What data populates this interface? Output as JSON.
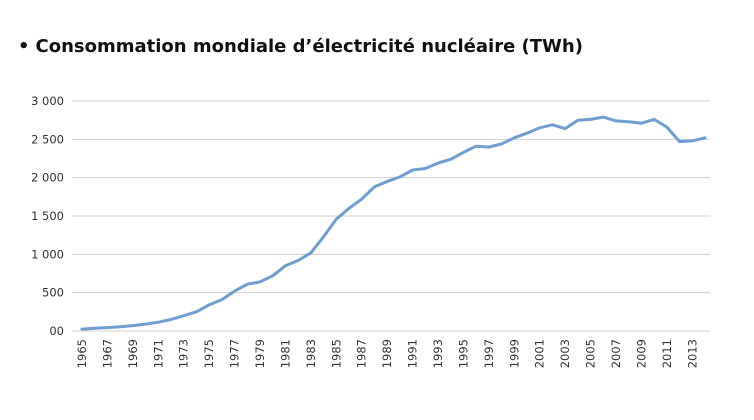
{
  "title_bullet": "•",
  "chart_data": {
    "type": "line",
    "title": "Consommation mondiale d’électricité nucléaire (TWh)",
    "xlabel": "",
    "ylabel": "",
    "ylim": [
      0,
      3000
    ],
    "y_ticks": [
      0,
      500,
      1000,
      1500,
      2000,
      2500,
      3000
    ],
    "y_tick_labels": [
      "00",
      "500",
      "1 000",
      "1 500",
      "2 000",
      "2 500",
      "3 000"
    ],
    "x_tick_labels": [
      "1965",
      "1967",
      "1969",
      "1971",
      "1973",
      "1975",
      "1977",
      "1979",
      "1981",
      "1983",
      "1985",
      "1987",
      "1989",
      "1991",
      "1993",
      "1995",
      "1997",
      "1999",
      "2001",
      "2003",
      "2005",
      "2007",
      "2009",
      "2011",
      "2013"
    ],
    "grid": "horizontal",
    "line_color": "#6f9fd0",
    "series": [
      {
        "x": [
          1965,
          1966,
          1967,
          1968,
          1969,
          1970,
          1971,
          1972,
          1973,
          1974,
          1975,
          1976,
          1977,
          1978,
          1979,
          1980,
          1981,
          1982,
          1983,
          1984,
          1985,
          1986,
          1987,
          1988,
          1989,
          1990,
          1991,
          1992,
          1993,
          1994,
          1995,
          1996,
          1997,
          1998,
          1999,
          2000,
          2001,
          2002,
          2003,
          2004,
          2005,
          2006,
          2007,
          2008,
          2009,
          2010,
          2011,
          2012,
          2013,
          2014
        ],
        "values": [
          25,
          35,
          45,
          55,
          70,
          90,
          115,
          150,
          200,
          250,
          340,
          410,
          520,
          610,
          640,
          720,
          850,
          920,
          1020,
          1230,
          1460,
          1600,
          1720,
          1880,
          1950,
          2010,
          2100,
          2120,
          2190,
          2240,
          2330,
          2410,
          2400,
          2440,
          2520,
          2580,
          2650,
          2690,
          2640,
          2750,
          2760,
          2790,
          2740,
          2730,
          2710,
          2760,
          2660,
          2470,
          2480,
          2520
        ]
      }
    ]
  }
}
